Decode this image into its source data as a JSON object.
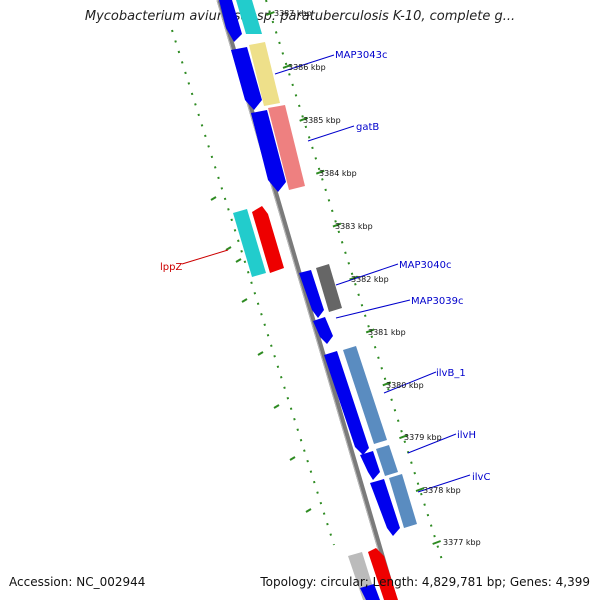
{
  "title": "Mycobacterium avium subsp. paratuberculosis K-10, complete g...",
  "footer": {
    "accession": "Accession: NC_002944",
    "summary": "Topology: circular; Length: 4,829,781 bp; Genes: 4,399"
  },
  "ticks": [
    {
      "label": "3387 kbp"
    },
    {
      "label": "3386 kbp"
    },
    {
      "label": "3385 kbp"
    },
    {
      "label": "3384 kbp"
    },
    {
      "label": "3383 kbp"
    },
    {
      "label": "3382 kbp"
    },
    {
      "label": "3381 kbp"
    },
    {
      "label": "3380 kbp"
    },
    {
      "label": "3379 kbp"
    },
    {
      "label": "3378 kbp"
    },
    {
      "label": "3377 kbp"
    }
  ],
  "genes": [
    {
      "name": "MAP3043c",
      "color": "#0000cc"
    },
    {
      "name": "gatB",
      "color": "#0000cc"
    },
    {
      "name": "lppZ",
      "color": "#cc0000"
    },
    {
      "name": "MAP3040c",
      "color": "#0000cc"
    },
    {
      "name": "MAP3039c",
      "color": "#0000cc"
    },
    {
      "name": "ilvB_1",
      "color": "#0000cc"
    },
    {
      "name": "ilvH",
      "color": "#0000cc"
    },
    {
      "name": "ilvC",
      "color": "#0000cc"
    }
  ],
  "colors": {
    "backbone": "#808080",
    "track_dots": "#2e8b22",
    "gene_blue": "#0000ee",
    "cyan": "#22cccc",
    "yellow": "#eee08a",
    "salmon": "#ee8080",
    "red": "#ee0000",
    "dark_gray": "#666666",
    "steel_blue": "#5a8cc0",
    "light_gray": "#bbbbbb"
  }
}
